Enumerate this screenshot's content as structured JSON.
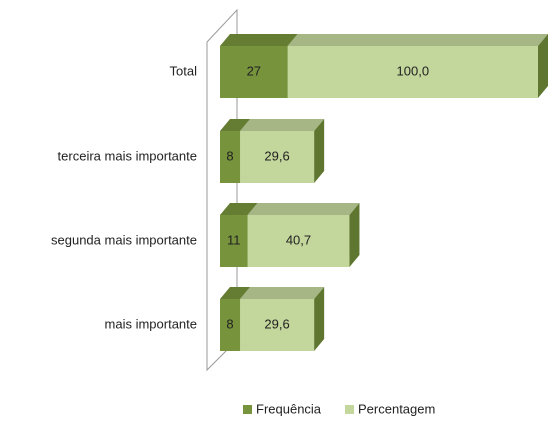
{
  "chart_data": {
    "type": "bar3d_stacked_horizontal",
    "categories": [
      "Total",
      "terceira mais importante",
      "segunda mais importante",
      "mais importante"
    ],
    "series": [
      {
        "name": "Frequência",
        "color": "#77933c",
        "values": [
          27,
          8,
          11,
          8
        ]
      },
      {
        "name": "Percentagem",
        "color": "#c3d69b",
        "values": [
          100.0,
          29.6,
          40.7,
          29.6
        ],
        "value_labels": [
          "100,0",
          "29,6",
          "40,7",
          "29,6"
        ]
      }
    ],
    "legend": "bottom"
  }
}
